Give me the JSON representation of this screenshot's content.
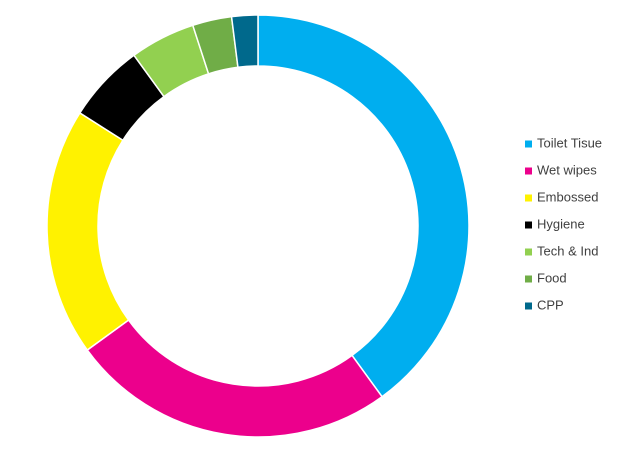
{
  "chart_data": {
    "type": "donut",
    "categories": [
      "Toilet Tisue",
      "Wet wipes",
      "Embossed",
      "Hygiene",
      "Tech & Ind",
      "Food",
      "CPP"
    ],
    "values": [
      40,
      25,
      19,
      6,
      5,
      3,
      2
    ],
    "colors": [
      "#00aeef",
      "#ec008c",
      "#fff200",
      "#000000",
      "#92d050",
      "#70ad47",
      "#00698c"
    ],
    "legend": "right"
  }
}
